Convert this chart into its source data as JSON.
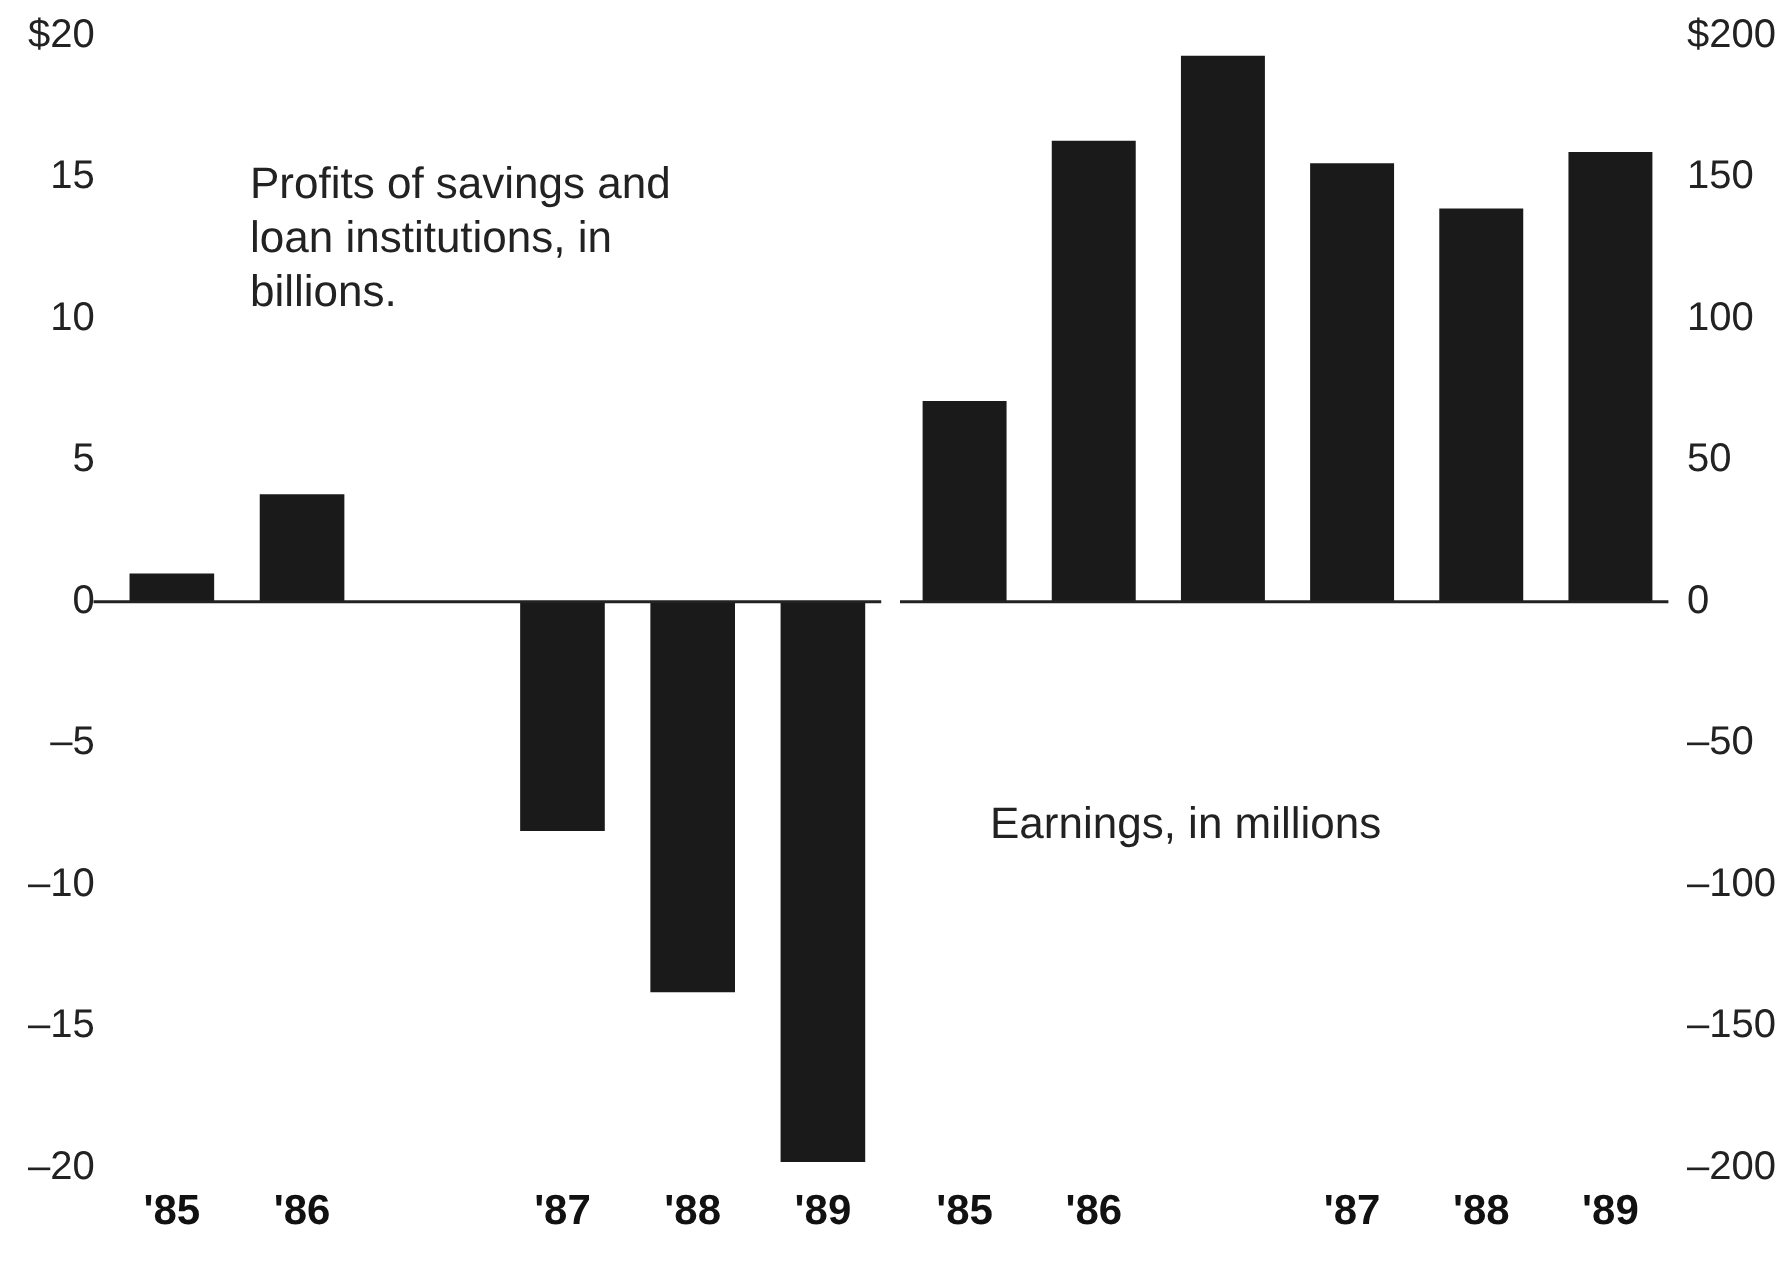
{
  "chart_data": [
    {
      "type": "bar",
      "categories": [
        "'85",
        "'86",
        null,
        "'87",
        "'88",
        "'89"
      ],
      "series": [
        {
          "color": "#1a1a1a",
          "values": [
            1,
            3.8,
            0,
            -8.1,
            -13.8,
            -19.8
          ]
        }
      ],
      "ylim": [
        -20,
        20
      ],
      "yticks": [
        {
          "value": 20,
          "label": "$20"
        },
        15,
        10,
        5,
        0,
        {
          "value": -5,
          "label": "–5"
        },
        {
          "value": -10,
          "label": "–10"
        },
        {
          "value": -15,
          "label": "–15"
        },
        {
          "value": -20,
          "label": "–20"
        }
      ],
      "ref_lines": [
        {
          "axis": "y",
          "value": 0
        }
      ],
      "annotations": [
        "Profits of savings and loan institutions, in billions."
      ]
    },
    {
      "type": "bar",
      "categories": [
        "'85",
        "'86",
        null,
        "'87",
        "'88",
        "'89"
      ],
      "series": [
        {
          "color": "#1a1a1a",
          "axis": "y2",
          "values": [
            71,
            163,
            193,
            155,
            139,
            159
          ]
        }
      ],
      "y2lim": [
        -200,
        200
      ],
      "y2ticks": [
        {
          "value": 200,
          "label": "$200"
        },
        150,
        100,
        50,
        0,
        {
          "value": -50,
          "label": "–50"
        },
        {
          "value": -100,
          "label": "–100"
        },
        {
          "value": -150,
          "label": "–150"
        },
        {
          "value": -200,
          "label": "–200"
        }
      ],
      "ref_lines": [
        {
          "axis": "y2",
          "value": 0
        }
      ],
      "annotations": [
        "Earnings, in millions"
      ]
    }
  ]
}
